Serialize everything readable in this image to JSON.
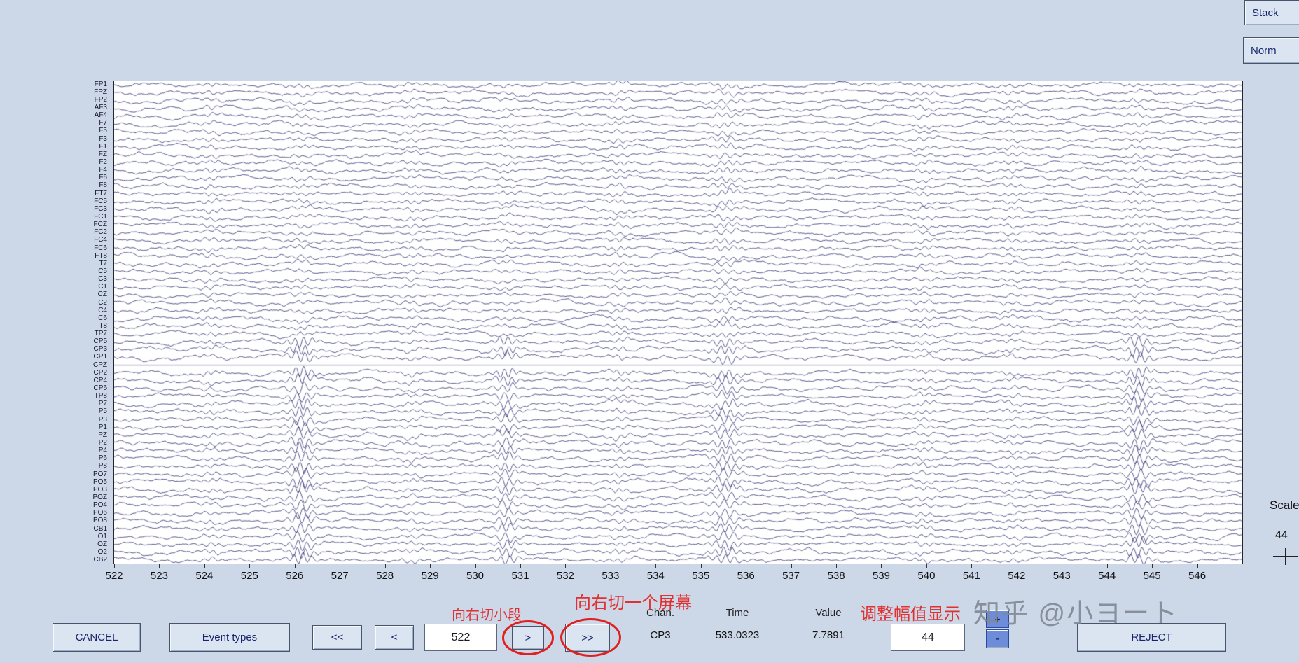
{
  "top_right": {
    "stack_label": "Stack",
    "norm_label": "Norm"
  },
  "plot": {
    "channels": [
      "FP1",
      "FPZ",
      "FP2",
      "AF3",
      "AF4",
      "F7",
      "F5",
      "F3",
      "F1",
      "FZ",
      "F2",
      "F4",
      "F6",
      "F8",
      "FT7",
      "FC5",
      "FC3",
      "FC1",
      "FCZ",
      "FC2",
      "FC4",
      "FC6",
      "FT8",
      "T7",
      "C5",
      "C3",
      "C1",
      "CZ",
      "C2",
      "C4",
      "C6",
      "T8",
      "TP7",
      "CP5",
      "CP3",
      "CP1",
      "CPZ",
      "CP2",
      "CP4",
      "CP6",
      "TP8",
      "P7",
      "P5",
      "P3",
      "P1",
      "PZ",
      "P2",
      "P4",
      "P6",
      "P8",
      "PO7",
      "PO5",
      "PO3",
      "POZ",
      "PO4",
      "PO6",
      "PO8",
      "CB1",
      "O1",
      "OZ",
      "O2",
      "CB2"
    ],
    "flat_channel": "CPZ",
    "x_ticks": [
      "522",
      "523",
      "524",
      "525",
      "526",
      "527",
      "528",
      "529",
      "530",
      "531",
      "532",
      "533",
      "534",
      "535",
      "536",
      "537",
      "538",
      "539",
      "540",
      "541",
      "542",
      "543",
      "544",
      "545",
      "546"
    ],
    "time_start": 522,
    "time_end": 547
  },
  "scale_panel": {
    "label": "Scale",
    "value": "44"
  },
  "toolbar": {
    "cancel_label": "CANCEL",
    "event_types_label": "Event types",
    "fast_back_label": "<<",
    "back_label": "<",
    "time_field_value": "522",
    "forward_label": ">",
    "fast_forward_label": ">>",
    "chan_label": "Chan.",
    "chan_value": "CP3",
    "time_label": "Time",
    "time_value": "533.0323",
    "value_label": "Value",
    "value_value": "7.7891",
    "amp_field_value": "44",
    "amp_plus_label": "+",
    "amp_minus_label": "-",
    "reject_label": "REJECT"
  },
  "annotations": {
    "cut_small_text": "向右切小段",
    "cut_screen_text": "向右切一个屏幕",
    "adjust_amp_text": "调整幅值显示",
    "watermark_text": "知乎 @小ヨート"
  },
  "colors": {
    "background": "#ccd7e8",
    "trace": "#1c1c66",
    "annotation_red": "#e03030"
  }
}
